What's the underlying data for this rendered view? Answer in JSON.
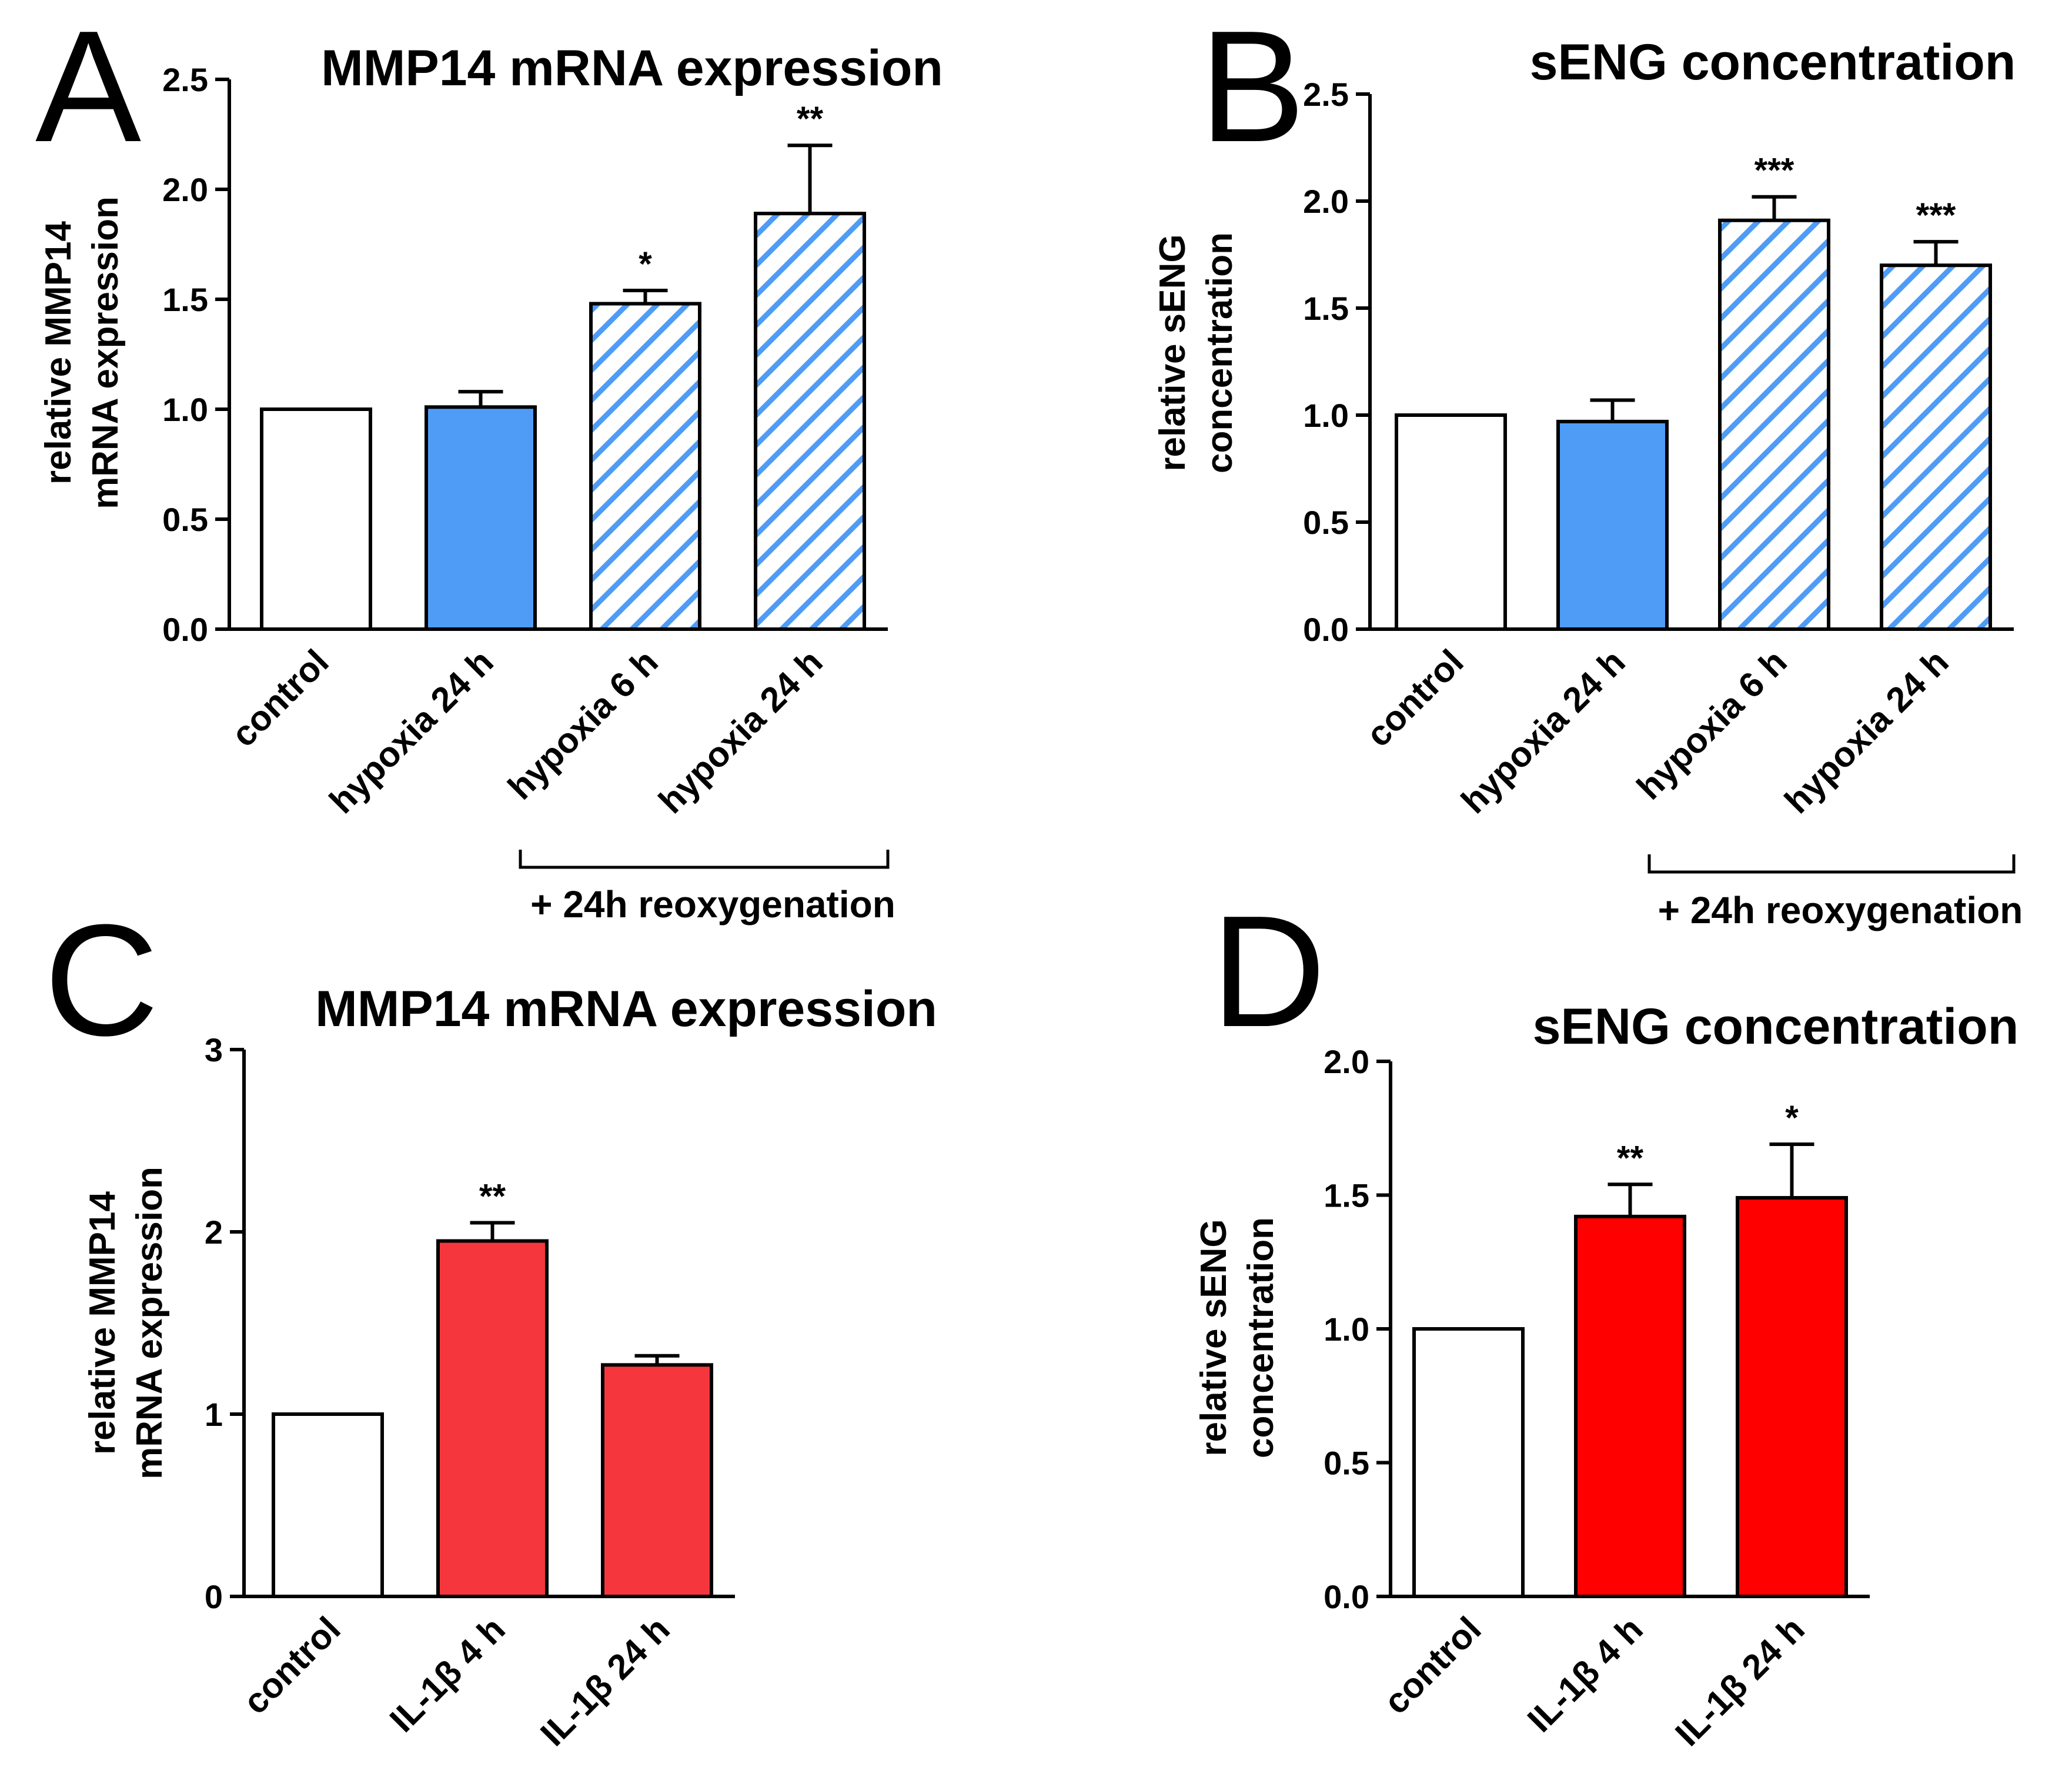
{
  "colors": {
    "white": "#ffffff",
    "blue": "#4f9cf7",
    "hatch": "#4f9cf7",
    "red_light": "#f5373d",
    "red": "#ff0000",
    "axis": "#000000"
  },
  "chart_data": [
    {
      "panel": "A",
      "type": "bar",
      "title": "MMP14 mRNA expression",
      "ylabel_lines": [
        "relative MMP14",
        "mRNA expression"
      ],
      "ylim": [
        0,
        2.5
      ],
      "yticks": [
        "0.0",
        "0.5",
        "1.0",
        "1.5",
        "2.0",
        "2.5"
      ],
      "ytick_values": [
        0,
        0.5,
        1.0,
        1.5,
        2.0,
        2.5
      ],
      "categories": [
        "control",
        "hypoxia 24 h",
        "hypoxia 6 h",
        "hypoxia 24 h"
      ],
      "values": [
        1.0,
        1.01,
        1.48,
        1.89
      ],
      "errors": [
        0,
        0.07,
        0.06,
        0.31
      ],
      "fills": [
        "white",
        "blue",
        "hatch",
        "hatch"
      ],
      "annotations": [
        "",
        "",
        "*",
        "**"
      ],
      "bracket": {
        "from": 2,
        "to": 3,
        "label": "+ 24h reoxygenation"
      }
    },
    {
      "panel": "B",
      "type": "bar",
      "title": "sENG concentration",
      "ylabel_lines": [
        "relative sENG",
        "concentration"
      ],
      "ylim": [
        0,
        2.5
      ],
      "yticks": [
        "0.0",
        "0.5",
        "1.0",
        "1.5",
        "2.0",
        "2.5"
      ],
      "ytick_values": [
        0,
        0.5,
        1.0,
        1.5,
        2.0,
        2.5
      ],
      "categories": [
        "control",
        "hypoxia 24 h",
        "hypoxia 6 h",
        "hypoxia 24 h"
      ],
      "values": [
        1.0,
        0.97,
        1.91,
        1.7
      ],
      "errors": [
        0,
        0.1,
        0.11,
        0.11
      ],
      "fills": [
        "white",
        "blue",
        "hatch",
        "hatch"
      ],
      "annotations": [
        "",
        "",
        "***",
        "***"
      ],
      "bracket": {
        "from": 2,
        "to": 3,
        "label": "+ 24h reoxygenation"
      }
    },
    {
      "panel": "C",
      "type": "bar",
      "title": "MMP14 mRNA expression",
      "ylabel_lines": [
        "relative MMP14",
        "mRNA expression"
      ],
      "ylim": [
        0,
        3
      ],
      "yticks": [
        "0",
        "1",
        "2",
        "3"
      ],
      "ytick_values": [
        0,
        1,
        2,
        3
      ],
      "categories": [
        "control",
        "IL-1β 4 h",
        "IL-1β 24 h"
      ],
      "values": [
        1.0,
        1.95,
        1.27
      ],
      "errors": [
        0,
        0.1,
        0.05
      ],
      "fills": [
        "white",
        "red_light",
        "red_light"
      ],
      "annotations": [
        "",
        "**",
        ""
      ]
    },
    {
      "panel": "D",
      "type": "bar",
      "title": "sENG concentration",
      "ylabel_lines": [
        "relative sENG",
        "concentration"
      ],
      "ylim": [
        0,
        2.0
      ],
      "yticks": [
        "0.0",
        "0.5",
        "1.0",
        "1.5",
        "2.0"
      ],
      "ytick_values": [
        0,
        0.5,
        1.0,
        1.5,
        2.0
      ],
      "categories": [
        "control",
        "IL-1β 4 h",
        "IL-1β 24 h"
      ],
      "values": [
        1.0,
        1.42,
        1.49
      ],
      "errors": [
        0,
        0.12,
        0.2
      ],
      "fills": [
        "white",
        "red",
        "red"
      ],
      "annotations": [
        "",
        "**",
        "*"
      ]
    }
  ]
}
